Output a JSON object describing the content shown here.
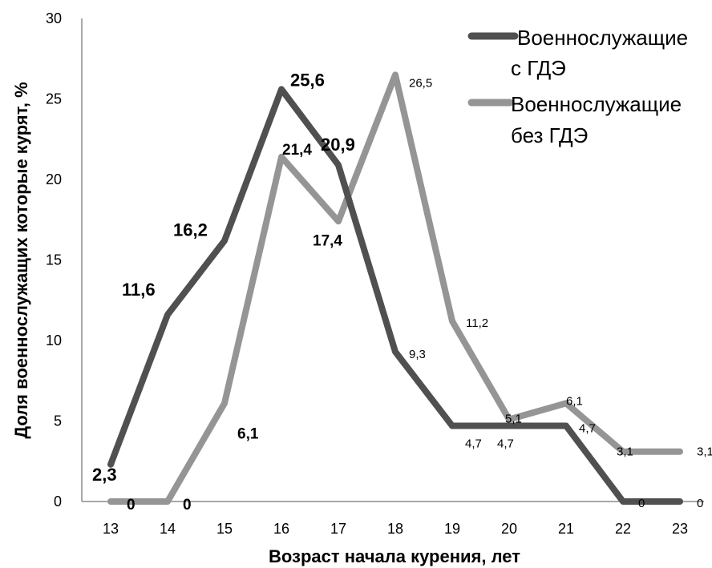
{
  "chart_data": {
    "type": "line",
    "xlabel": "Возраст начала курения,  лет",
    "ylabel": "Доля  военнослужащих   которые  курят,  %",
    "x": [
      13,
      14,
      15,
      16,
      17,
      18,
      19,
      20,
      21,
      22,
      23
    ],
    "ylim": [
      0,
      30
    ],
    "yticks": [
      "0",
      "5",
      "10",
      "15",
      "20",
      "25",
      "30"
    ],
    "xticks": [
      "13",
      "14",
      "15",
      "16",
      "17",
      "18",
      "19",
      "20",
      "21",
      "22",
      "23"
    ],
    "grid": false,
    "legend_position": "top-right",
    "series": [
      {
        "name": "Военнослужащие с ГДЭ",
        "legend_lines": [
          "Военнослужащие",
          "с ГДЭ"
        ],
        "color": "#505050",
        "values": [
          2.3,
          11.6,
          16.2,
          25.6,
          20.9,
          9.3,
          4.7,
          4.7,
          4.7,
          0,
          0
        ],
        "labels": [
          "2,3",
          "11,6",
          "16,2",
          "25,6",
          "20,9",
          "9,3",
          "4,7",
          "4,7",
          "4,7",
          "0",
          "0"
        ]
      },
      {
        "name": "Военнослужащие без ГДЭ",
        "legend_lines": [
          "Военнослужащие",
          "без ГДЭ"
        ],
        "color": "#959595",
        "values": [
          0,
          0,
          6.1,
          21.4,
          17.4,
          26.5,
          11.2,
          5.1,
          6.1,
          3.1,
          3.1
        ],
        "labels": [
          "0",
          "0",
          "6,1",
          "21,4",
          "17,4",
          "26,5",
          "11,2",
          "5,1",
          "6,1",
          "3,1",
          "3,1"
        ]
      }
    ]
  }
}
